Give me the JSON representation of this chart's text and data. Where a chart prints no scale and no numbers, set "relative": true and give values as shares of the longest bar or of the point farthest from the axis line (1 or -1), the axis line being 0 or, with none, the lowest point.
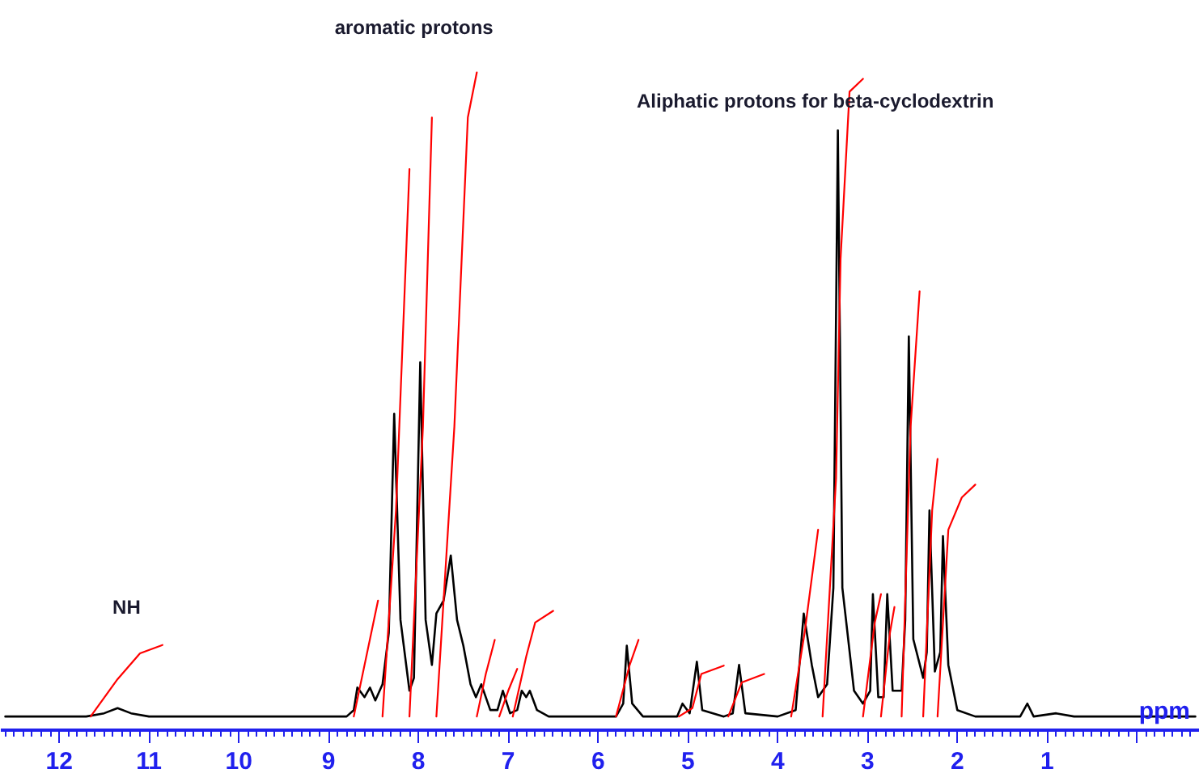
{
  "chart_data": {
    "type": "line",
    "relative": true,
    "xlabel": "ppm",
    "annotations": [
      "NH",
      "aromatic protons",
      "Aliphatic protons for beta-cyclodextrin"
    ],
    "xlim": [
      12.65,
      -0.7
    ],
    "xticks": [
      12,
      11,
      10,
      9,
      8,
      7,
      6,
      5,
      4,
      3,
      2,
      1,
      {
        "value": 0,
        "label": null
      }
    ],
    "grid": false,
    "marker": "none",
    "line_style": "solid",
    "series": [
      {
        "color": "#000000",
        "x": [
          12.6,
          11.7,
          11.5,
          11.35,
          11.2,
          11.0,
          8.8,
          8.72,
          8.68,
          8.6,
          8.54,
          8.48,
          8.4,
          8.33,
          8.27,
          8.2,
          8.1,
          8.05,
          7.98,
          7.92,
          7.85,
          7.8,
          7.72,
          7.64,
          7.57,
          7.5,
          7.42,
          7.36,
          7.3,
          7.2,
          7.12,
          7.06,
          6.98,
          6.9,
          6.85,
          6.8,
          6.76,
          6.68,
          6.55,
          5.8,
          5.72,
          5.68,
          5.62,
          5.5,
          5.12,
          5.06,
          4.98,
          4.9,
          4.84,
          4.6,
          4.5,
          4.43,
          4.36,
          4.0,
          3.8,
          3.71,
          3.62,
          3.55,
          3.45,
          3.38,
          3.33,
          3.28,
          3.15,
          3.05,
          2.97,
          2.94,
          2.88,
          2.82,
          2.78,
          2.72,
          2.62,
          2.58,
          2.54,
          2.49,
          2.38,
          2.34,
          2.31,
          2.25,
          2.19,
          2.16,
          2.1,
          2.0,
          1.8,
          1.3,
          1.22,
          1.15,
          0.9,
          0.7,
          -0.65
        ],
        "values": [
          0,
          0,
          0.005,
          0.013,
          0.005,
          0,
          0,
          0.01,
          0.045,
          0.03,
          0.045,
          0.025,
          0.05,
          0.13,
          0.47,
          0.15,
          0.04,
          0.06,
          0.55,
          0.15,
          0.08,
          0.16,
          0.18,
          0.25,
          0.15,
          0.11,
          0.05,
          0.03,
          0.05,
          0.01,
          0.01,
          0.04,
          0.005,
          0.01,
          0.04,
          0.03,
          0.04,
          0.01,
          0,
          0,
          0.02,
          0.11,
          0.02,
          0,
          0,
          0.02,
          0.005,
          0.085,
          0.01,
          0,
          0.005,
          0.08,
          0.005,
          0,
          0.01,
          0.16,
          0.08,
          0.03,
          0.05,
          0.2,
          0.91,
          0.2,
          0.04,
          0.02,
          0.04,
          0.19,
          0.03,
          0.03,
          0.19,
          0.04,
          0.04,
          0.15,
          0.59,
          0.12,
          0.06,
          0.1,
          0.32,
          0.07,
          0.1,
          0.28,
          0.08,
          0.01,
          0,
          0,
          0.02,
          0,
          0.005,
          0,
          0
        ]
      },
      {
        "color": "#ff0000",
        "x": [
          11.65,
          11.35,
          11.1,
          10.85
        ],
        "values": [
          0,
          0.058,
          0.098,
          0.111
        ]
      },
      {
        "color": "#ff0000",
        "x": [
          8.72,
          8.45
        ],
        "values": [
          0,
          0.18
        ]
      },
      {
        "color": "#ff0000",
        "x": [
          8.4,
          8.25,
          8.1
        ],
        "values": [
          0,
          0.32,
          0.85
        ]
      },
      {
        "color": "#ff0000",
        "x": [
          8.1,
          7.95,
          7.85
        ],
        "values": [
          0,
          0.45,
          0.93
        ]
      },
      {
        "color": "#ff0000",
        "x": [
          7.8,
          7.6,
          7.45,
          7.35
        ],
        "values": [
          0,
          0.45,
          0.93,
          1.0
        ]
      },
      {
        "color": "#ff0000",
        "x": [
          7.35,
          7.25,
          7.15
        ],
        "values": [
          0,
          0.066,
          0.119
        ]
      },
      {
        "color": "#ff0000",
        "x": [
          7.1,
          7.0,
          6.9
        ],
        "values": [
          0,
          0.04,
          0.074
        ]
      },
      {
        "color": "#ff0000",
        "x": [
          6.95,
          6.8,
          6.7,
          6.5
        ],
        "values": [
          0,
          0.093,
          0.146,
          0.164
        ]
      },
      {
        "color": "#ff0000",
        "x": [
          5.8,
          5.65,
          5.55
        ],
        "values": [
          0,
          0.079,
          0.119
        ]
      },
      {
        "color": "#ff0000",
        "x": [
          5.1,
          4.95,
          4.85,
          4.6
        ],
        "values": [
          0,
          0.013,
          0.066,
          0.079
        ]
      },
      {
        "color": "#ff0000",
        "x": [
          4.55,
          4.4,
          4.15
        ],
        "values": [
          0,
          0.053,
          0.066
        ]
      },
      {
        "color": "#ff0000",
        "x": [
          3.85,
          3.7,
          3.55
        ],
        "values": [
          0,
          0.13,
          0.29
        ]
      },
      {
        "color": "#ff0000",
        "x": [
          3.5,
          3.35,
          3.3,
          3.2,
          3.05
        ],
        "values": [
          0,
          0.37,
          0.71,
          0.97,
          0.99
        ]
      },
      {
        "color": "#ff0000",
        "x": [
          3.05,
          2.92,
          2.85
        ],
        "values": [
          0,
          0.145,
          0.19
        ]
      },
      {
        "color": "#ff0000",
        "x": [
          2.85,
          2.75,
          2.7
        ],
        "values": [
          0,
          0.13,
          0.17
        ]
      },
      {
        "color": "#ff0000",
        "x": [
          2.62,
          2.52,
          2.42
        ],
        "values": [
          0,
          0.45,
          0.66
        ]
      },
      {
        "color": "#ff0000",
        "x": [
          2.38,
          2.28,
          2.22
        ],
        "values": [
          0,
          0.32,
          0.4
        ]
      },
      {
        "color": "#ff0000",
        "x": [
          2.22,
          2.1,
          1.95,
          1.8
        ],
        "values": [
          0,
          0.29,
          0.34,
          0.36
        ]
      }
    ]
  }
}
